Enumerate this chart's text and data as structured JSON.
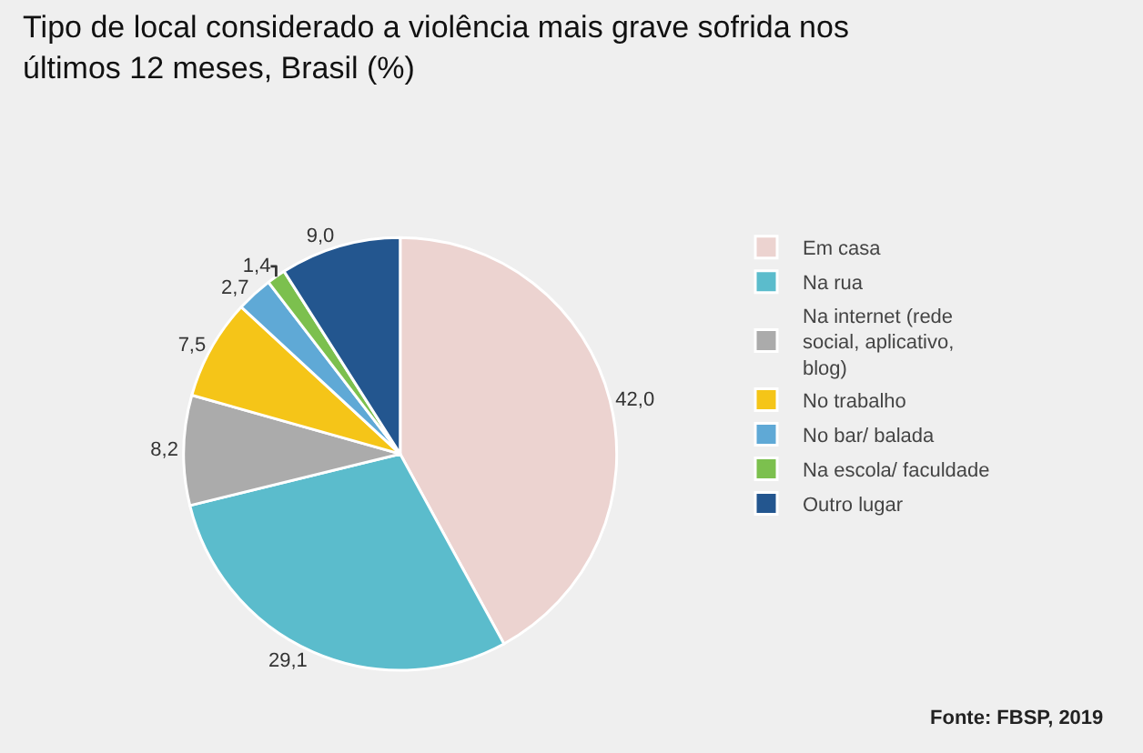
{
  "chart_data": {
    "type": "pie",
    "title": "Tipo de local considerado a violência mais grave sofrida nos últimos 12 meses, Brasil (%)",
    "categories": [
      "Em casa",
      "Na rua",
      "Na internet (rede social, aplicativo, blog)",
      "No trabalho",
      "No bar/ balada",
      "Na escola/ faculdade",
      "Outro lugar"
    ],
    "values": [
      42.0,
      29.1,
      8.2,
      7.5,
      2.7,
      1.4,
      9.0
    ],
    "value_labels": [
      "42,0",
      "29,1",
      "8,2",
      "7,5",
      "2,7",
      "1,4",
      "9,0"
    ],
    "colors": [
      "#ecd3d0",
      "#5bbccc",
      "#ababab",
      "#f5c518",
      "#5fa9d6",
      "#7cc04e",
      "#23568f"
    ],
    "legend": "right",
    "annotations": [
      "Fonte: FBSP, 2019"
    ]
  }
}
